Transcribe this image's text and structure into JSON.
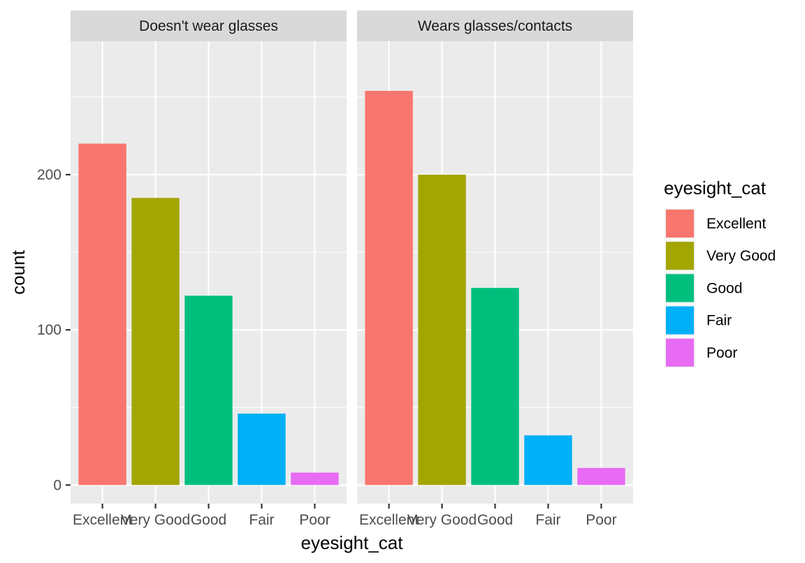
{
  "chart_data": {
    "type": "bar",
    "facet_variable": "glasses",
    "facets": [
      {
        "label": "Doesn't wear glasses",
        "values": [
          220,
          185,
          122,
          46,
          8
        ]
      },
      {
        "label": "Wears glasses/contacts",
        "values": [
          254,
          200,
          127,
          32,
          11
        ]
      }
    ],
    "categories": [
      "Excellent",
      "Very Good",
      "Good",
      "Fair",
      "Poor"
    ],
    "xlabel": "eyesight_cat",
    "ylabel": "count",
    "ylim": [
      -12,
      286
    ],
    "y_ticks": [
      0,
      100,
      200
    ],
    "y_tick_labels": [
      "0",
      "100",
      "200"
    ],
    "grid": true,
    "legend": {
      "title": "eyesight_cat",
      "position": "right",
      "items": [
        "Excellent",
        "Very Good",
        "Good",
        "Fair",
        "Poor"
      ]
    },
    "colors": {
      "Excellent": "#F8766D",
      "Very Good": "#A3A500",
      "Good": "#00BF7D",
      "Fair": "#00B0F6",
      "Poor": "#E76BF3",
      "panel_background": "#EBEBEB",
      "strip_background": "#D9D9D9",
      "grid": "#FFFFFF"
    }
  }
}
